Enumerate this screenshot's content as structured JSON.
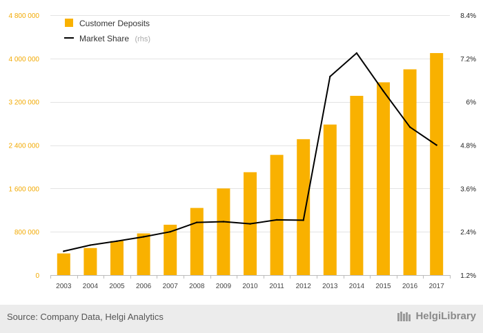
{
  "chart_data": {
    "type": "bar+line",
    "categories": [
      "2003",
      "2004",
      "2005",
      "2006",
      "2007",
      "2008",
      "2009",
      "2010",
      "2011",
      "2012",
      "2013",
      "2014",
      "2015",
      "2016",
      "2017"
    ],
    "series": [
      {
        "name": "Customer Deposits",
        "kind": "bar",
        "axis": "left",
        "color": "#f9b100",
        "values": [
          400000,
          500000,
          630000,
          770000,
          930000,
          1240000,
          1600000,
          1900000,
          2220000,
          2510000,
          2780000,
          3310000,
          3560000,
          3800000,
          4100000
        ]
      },
      {
        "name": "Market Share",
        "name_suffix": "(rhs)",
        "kind": "line",
        "axis": "right",
        "color": "#000000",
        "values": [
          1.86,
          2.03,
          2.14,
          2.26,
          2.4,
          2.66,
          2.68,
          2.62,
          2.73,
          2.72,
          6.7,
          7.35,
          6.3,
          5.3,
          4.8
        ]
      }
    ],
    "y_left": {
      "ylim": [
        0,
        4800000
      ],
      "ticks": [
        0,
        800000,
        1600000,
        2400000,
        3200000,
        4000000,
        4800000
      ],
      "tick_labels": [
        "0",
        "800 000",
        "1 600 000",
        "2 400 000",
        "3 200 000",
        "4 000 000",
        "4 800 000"
      ],
      "color": "#f2a900"
    },
    "y_right": {
      "ylim": [
        1.2,
        8.4
      ],
      "ticks": [
        1.2,
        2.4,
        3.6,
        4.8,
        6.0,
        7.2,
        8.4
      ],
      "tick_labels": [
        "1.2%",
        "2.4%",
        "3.6%",
        "4.8%",
        "6%",
        "7.2%",
        "8.4%"
      ]
    },
    "grid": true,
    "legend_position": "top-left"
  },
  "footer": {
    "source": "Source: Company Data, Helgi Analytics",
    "brand": "HelgiLibrary"
  }
}
